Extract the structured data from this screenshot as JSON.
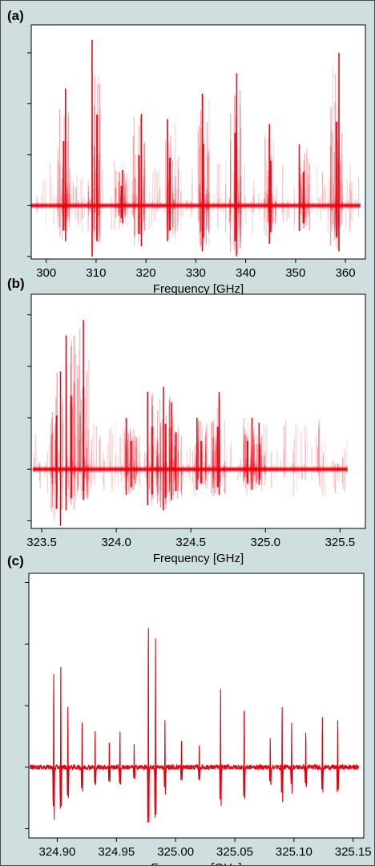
{
  "chart_data": [
    {
      "type": "line",
      "panel_label": "(a)",
      "xlabel": "Frequency [GHz]",
      "ylabel": "",
      "xlim": [
        297,
        364
      ],
      "xticks": [
        "300",
        "310",
        "320",
        "330",
        "340",
        "350",
        "360"
      ],
      "xtick_values": [
        300,
        310,
        320,
        330,
        340,
        350,
        360
      ],
      "ylim": [
        -1.05,
        3.55
      ],
      "yticks_unlabeled": [
        -1,
        0,
        1,
        2,
        3
      ],
      "series_color": "#e8000f",
      "style": "dense",
      "baseline_span": [
        297,
        363
      ],
      "peaks": [
        {
          "x": 303.5,
          "h": 2.3,
          "d": -0.7
        },
        {
          "x": 310.2,
          "h": 3.25,
          "d": -1.0
        },
        {
          "x": 315.1,
          "h": 0.7,
          "d": -0.35
        },
        {
          "x": 318.6,
          "h": 1.8,
          "d": -0.8
        },
        {
          "x": 324.8,
          "h": 1.7,
          "d": -0.7
        },
        {
          "x": 331.5,
          "h": 2.2,
          "d": -0.9
        },
        {
          "x": 337.9,
          "h": 2.6,
          "d": -1.0
        },
        {
          "x": 345.0,
          "h": 1.6,
          "d": -0.75
        },
        {
          "x": 351.6,
          "h": 1.2,
          "d": -0.5
        },
        {
          "x": 358.2,
          "h": 3.0,
          "d": -0.9
        }
      ]
    },
    {
      "type": "line",
      "panel_label": "(b)",
      "xlabel": "Frequency [GHz]",
      "ylabel": "",
      "xlim": [
        323.43,
        325.67
      ],
      "xticks": [
        "323.5",
        "324.0",
        "324.5",
        "325.0",
        "325.5"
      ],
      "xtick_values": [
        323.5,
        324.0,
        324.5,
        325.0,
        325.5
      ],
      "ylim": [
        -1.15,
        3.4
      ],
      "yticks_unlabeled": [
        -1,
        0,
        1,
        2,
        3
      ],
      "series_color": "#e8000f",
      "style": "dense",
      "baseline_span": [
        323.44,
        325.55
      ],
      "peaks": [
        {
          "x": 323.6,
          "h": 1.9,
          "d": -1.1
        },
        {
          "x": 323.7,
          "h": 2.6,
          "d": -0.8
        },
        {
          "x": 323.78,
          "h": 2.9,
          "d": -0.6
        },
        {
          "x": 324.1,
          "h": 1.0,
          "d": -0.5
        },
        {
          "x": 324.24,
          "h": 1.5,
          "d": -0.7
        },
        {
          "x": 324.33,
          "h": 1.6,
          "d": -0.8
        },
        {
          "x": 324.4,
          "h": 1.3,
          "d": -0.6
        },
        {
          "x": 324.57,
          "h": 1.0,
          "d": -0.4
        },
        {
          "x": 324.68,
          "h": 1.5,
          "d": -0.5
        },
        {
          "x": 324.88,
          "h": 1.0,
          "d": -0.4
        },
        {
          "x": 324.96,
          "h": 0.9,
          "d": -0.3
        }
      ]
    },
    {
      "type": "line",
      "panel_label": "(c)",
      "xlabel": "Frequency [GHz]",
      "ylabel": "",
      "xlim": [
        324.876,
        325.159
      ],
      "xticks": [
        "324.90",
        "324.95",
        "325.00",
        "325.05",
        "325.10",
        "325.15"
      ],
      "xtick_values": [
        324.9,
        324.95,
        325.0,
        325.05,
        325.1,
        325.15
      ],
      "ylim": [
        -1.15,
        3.15
      ],
      "yticks_unlabeled": [
        -1,
        0,
        1,
        2,
        3
      ],
      "series_color": "#e8000f",
      "style": "trace",
      "baseline_span": [
        324.877,
        325.155
      ],
      "peaks": [
        {
          "x": 324.897,
          "h": 1.7,
          "d": -1.05
        },
        {
          "x": 324.903,
          "h": 1.6,
          "d": -0.7
        },
        {
          "x": 324.909,
          "h": 1.0,
          "d": -0.6
        },
        {
          "x": 324.921,
          "h": 0.9,
          "d": -0.5
        },
        {
          "x": 324.932,
          "h": 0.6,
          "d": -0.4
        },
        {
          "x": 324.944,
          "h": 0.5,
          "d": -0.3
        },
        {
          "x": 324.953,
          "h": 0.6,
          "d": -0.4
        },
        {
          "x": 324.965,
          "h": 0.4,
          "d": -0.3
        },
        {
          "x": 324.977,
          "h": 2.6,
          "d": -1.05
        },
        {
          "x": 324.983,
          "h": 2.1,
          "d": -0.8
        },
        {
          "x": 324.991,
          "h": 0.8,
          "d": -0.6
        },
        {
          "x": 325.005,
          "h": 0.5,
          "d": -0.3
        },
        {
          "x": 325.02,
          "h": 0.4,
          "d": -0.3
        },
        {
          "x": 325.038,
          "h": 1.3,
          "d": -0.7
        },
        {
          "x": 325.058,
          "h": 1.2,
          "d": -0.7
        },
        {
          "x": 325.08,
          "h": 0.5,
          "d": -0.4
        },
        {
          "x": 325.09,
          "h": 1.1,
          "d": -0.7
        },
        {
          "x": 325.098,
          "h": 0.7,
          "d": -0.5
        },
        {
          "x": 325.11,
          "h": 0.7,
          "d": -0.5
        },
        {
          "x": 325.124,
          "h": 0.8,
          "d": -0.5
        },
        {
          "x": 325.137,
          "h": 0.9,
          "d": -0.6
        }
      ]
    }
  ]
}
